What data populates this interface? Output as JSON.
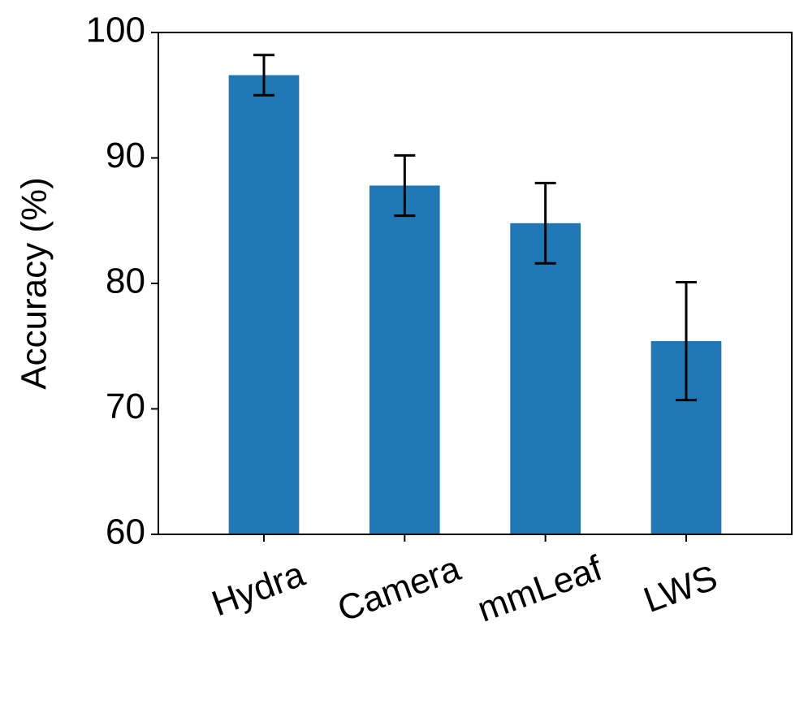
{
  "chart_data": {
    "type": "bar",
    "y_label": "Accuracy (%)",
    "categories": [
      "Hydra",
      "Camera",
      "mmLeaf",
      "LWS"
    ],
    "values": [
      96.6,
      87.8,
      84.8,
      75.4
    ],
    "errors": [
      1.6,
      2.4,
      3.2,
      4.7
    ],
    "color": "#1f77b4",
    "ylim": [
      60,
      100
    ],
    "yticks": [
      60,
      70,
      80,
      90,
      100
    ],
    "grid": false
  }
}
